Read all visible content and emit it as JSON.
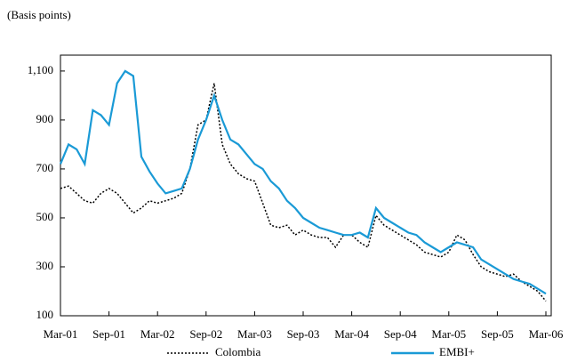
{
  "chart_data": {
    "type": "line",
    "y_label": "(Basis points)",
    "categories": [
      "Mar-01",
      null,
      null,
      null,
      null,
      null,
      "Sep-01",
      null,
      null,
      null,
      null,
      null,
      "Mar-02",
      null,
      null,
      null,
      null,
      null,
      "Sep-02",
      null,
      null,
      null,
      null,
      null,
      "Mar-03",
      null,
      null,
      null,
      null,
      null,
      "Sep-03",
      null,
      null,
      null,
      null,
      null,
      "Mar-04",
      null,
      null,
      null,
      null,
      null,
      "Sep-04",
      null,
      null,
      null,
      null,
      null,
      "Mar-05",
      null,
      null,
      null,
      null,
      null,
      "Sep-05",
      null,
      null,
      null,
      null,
      null,
      "Mar-06"
    ],
    "series": [
      {
        "name": "Colombia",
        "color": "#000000",
        "dash": "dotted",
        "values": [
          620,
          630,
          600,
          570,
          560,
          600,
          620,
          600,
          560,
          520,
          540,
          570,
          560,
          570,
          580,
          600,
          700,
          880,
          900,
          1050,
          800,
          720,
          680,
          660,
          650,
          560,
          470,
          460,
          470,
          430,
          450,
          430,
          420,
          420,
          380,
          430,
          430,
          400,
          380,
          510,
          470,
          450,
          430,
          410,
          390,
          360,
          350,
          340,
          360,
          430,
          410,
          350,
          300,
          280,
          270,
          260,
          270,
          240,
          220,
          200,
          160
        ]
      },
      {
        "name": "EMBI+",
        "color": "#1a9ad6",
        "dash": "solid",
        "values": [
          720,
          800,
          780,
          720,
          940,
          920,
          880,
          1050,
          1100,
          1080,
          750,
          690,
          640,
          600,
          610,
          620,
          700,
          820,
          900,
          1000,
          900,
          820,
          800,
          760,
          720,
          700,
          650,
          620,
          570,
          540,
          500,
          480,
          460,
          450,
          440,
          430,
          430,
          440,
          420,
          540,
          500,
          480,
          460,
          440,
          430,
          400,
          380,
          360,
          380,
          400,
          390,
          380,
          330,
          310,
          290,
          270,
          250,
          240,
          230,
          210,
          190
        ]
      }
    ],
    "ylim": [
      100,
      1165
    ],
    "yticks": [
      100,
      300,
      500,
      700,
      900,
      {
        "value": 1100,
        "label": "1,100"
      }
    ],
    "grid": false
  }
}
